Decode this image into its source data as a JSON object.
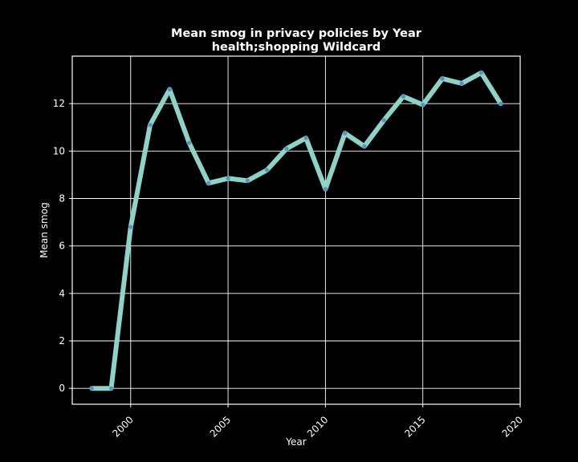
{
  "chart_data": {
    "type": "line",
    "title": "Mean smog in privacy policies by Year",
    "subtitle": "health;shopping Wildcard",
    "xlabel": "Year",
    "ylabel": "Mean smog",
    "xlim": [
      1997,
      2020
    ],
    "ylim": [
      -0.67,
      14.0
    ],
    "xticks": [
      2000,
      2005,
      2010,
      2015,
      2020
    ],
    "yticks": [
      0,
      2,
      4,
      6,
      8,
      10,
      12
    ],
    "grid": true,
    "colors": {
      "background": "#000000",
      "line": "#8dd3c7",
      "marker": "#5b8fbf",
      "grid": "#ffffff",
      "text": "#ffffff"
    },
    "series": [
      {
        "x": [
          1998,
          1999,
          2000,
          2001,
          2002,
          2003,
          2004,
          2005,
          2006,
          2007,
          2008,
          2009,
          2010,
          2011,
          2012,
          2013,
          2014,
          2015,
          2016,
          2017,
          2018,
          2019
        ],
        "y": [
          0.0,
          0.0,
          6.8,
          11.1,
          12.6,
          10.35,
          8.65,
          8.85,
          8.75,
          9.2,
          10.1,
          10.55,
          8.4,
          10.75,
          10.2,
          11.3,
          12.3,
          11.95,
          13.05,
          12.85,
          13.3,
          12.0
        ]
      }
    ]
  }
}
